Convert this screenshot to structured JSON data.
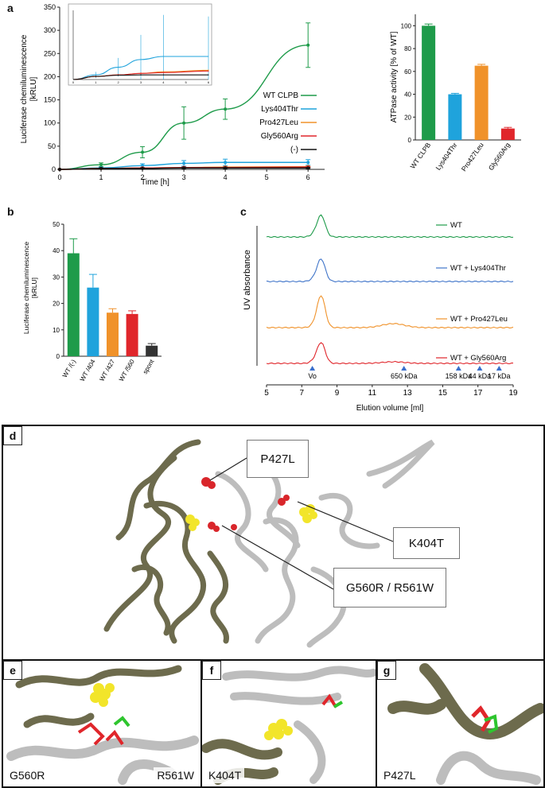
{
  "panel_labels": {
    "a": "a",
    "b": "b",
    "c": "c",
    "d": "d",
    "e": "e",
    "f": "f",
    "g": "g"
  },
  "colors": {
    "wt": "#1e9b4a",
    "lys404thr": "#1fa3dc",
    "pro427leu": "#f0922a",
    "gly560arg": "#e0262b",
    "neg": "#111111",
    "spont": "#333333",
    "mut_blue": "#3f74c9",
    "olive": "#6d6b4d",
    "marker": "#3a6fcc"
  },
  "chart_data": [
    {
      "id": "a-main",
      "type": "line",
      "title": "",
      "xlabel": "Time [h]",
      "ylabel_line1": "Luciferase chemiluminescence",
      "ylabel_line2": "[kRLU]",
      "xlim": [
        0,
        6.4
      ],
      "ylim": [
        0,
        350
      ],
      "xticks": [
        0,
        1,
        2,
        3,
        4,
        5,
        6
      ],
      "yticks": [
        0,
        50,
        100,
        150,
        200,
        250,
        300,
        350
      ],
      "x": [
        0,
        1,
        2,
        3,
        4,
        6
      ],
      "series": [
        {
          "name": "WT CLPB",
          "color": "#1e9b4a",
          "values": [
            0,
            10,
            37,
            100,
            130,
            268
          ],
          "err": [
            0,
            4,
            12,
            35,
            22,
            48
          ]
        },
        {
          "name": "Lys404Thr",
          "color": "#1fa3dc",
          "values": [
            0,
            3,
            8,
            13,
            15,
            15
          ],
          "err": [
            0,
            2,
            4,
            6,
            7,
            6
          ]
        },
        {
          "name": "Pro427Leu",
          "color": "#f0922a",
          "values": [
            0,
            2,
            3,
            4,
            5,
            6
          ],
          "err": [
            0,
            1,
            1,
            1,
            1,
            1
          ]
        },
        {
          "name": "Gly560Arg",
          "color": "#e0262b",
          "values": [
            0,
            2,
            3,
            4,
            4,
            5
          ],
          "err": [
            0,
            1,
            1,
            1,
            1,
            1
          ]
        },
        {
          "name": "(-)",
          "color": "#111111",
          "values": [
            0,
            2,
            2,
            3,
            3,
            3
          ],
          "err": [
            0,
            1,
            1,
            1,
            1,
            1
          ]
        }
      ],
      "legend": "right"
    },
    {
      "id": "a-inset",
      "type": "line",
      "xlim": [
        0,
        6
      ],
      "ylim": [
        0,
        45
      ],
      "xticks": [
        0,
        1,
        2,
        3,
        4,
        5,
        6
      ],
      "x": [
        0,
        1,
        2,
        3,
        4,
        6
      ],
      "series": [
        {
          "name": "Lys404Thr",
          "color": "#1fa3dc",
          "values": [
            0,
            3,
            8,
            13,
            15,
            15
          ],
          "err": [
            0,
            2,
            6,
            16,
            27,
            26
          ]
        },
        {
          "name": "Pro427Leu",
          "color": "#f0922a",
          "values": [
            0,
            2,
            3,
            4,
            5,
            6
          ],
          "err": [
            0,
            0.5,
            0.6,
            0.6,
            0.6,
            0.6
          ]
        },
        {
          "name": "Gly560Arg",
          "color": "#e0262b",
          "values": [
            0,
            2,
            3,
            4,
            4.5,
            5.5
          ],
          "err": [
            0,
            0.5,
            0.6,
            0.6,
            0.6,
            0.6
          ]
        },
        {
          "name": "(-)",
          "color": "#111111",
          "values": [
            0,
            2,
            2.8,
            3,
            3,
            3
          ],
          "err": [
            0,
            0.4,
            0.4,
            0.4,
            0.4,
            0.4
          ]
        }
      ]
    },
    {
      "id": "a-atpase",
      "type": "bar",
      "ylabel": "ATPase activity [% of WT]",
      "ylim": [
        0,
        110
      ],
      "yticks": [
        0,
        20,
        40,
        60,
        80,
        100
      ],
      "categories": [
        "WT CLPB",
        "Lys404Thr",
        "Pro427Leu",
        "Gly560Arg"
      ],
      "values": [
        100,
        40,
        65,
        10
      ],
      "err": [
        1.5,
        0.8,
        1.2,
        1.0
      ],
      "colors": [
        "#1e9b4a",
        "#1fa3dc",
        "#f0922a",
        "#e0262b"
      ]
    },
    {
      "id": "b-bars",
      "type": "bar",
      "ylabel_line1": "Luciferase chemiluminescence",
      "ylabel_line2": "[kRLU]",
      "ylim": [
        0,
        50
      ],
      "yticks": [
        0,
        10,
        20,
        30,
        40,
        50
      ],
      "categories": [
        "WT /(-)",
        "WT /404",
        "WT /427",
        "WT /560",
        "spont"
      ],
      "values": [
        39,
        26,
        16.5,
        16,
        4
      ],
      "err": [
        5.5,
        5,
        1.5,
        1.2,
        0.8
      ],
      "colors": [
        "#1e9b4a",
        "#1fa3dc",
        "#f0922a",
        "#e0262b",
        "#333333"
      ]
    },
    {
      "id": "c-sec",
      "type": "line",
      "xlabel": "Elution volume [ml]",
      "ylabel": "UV absorbance",
      "xlim": [
        5,
        19
      ],
      "xticks": [
        5,
        7,
        9,
        11,
        13,
        15,
        17,
        19
      ],
      "series": [
        {
          "name": "WT",
          "color": "#1e9b4a"
        },
        {
          "name": "WT + Lys404Thr",
          "color": "#3f74c9"
        },
        {
          "name": "WT + Pro427Leu",
          "color": "#f0922a"
        },
        {
          "name": "WT + Gly560Arg",
          "color": "#e0262b"
        }
      ],
      "markers": [
        {
          "label": "Vo",
          "x": 7.6
        },
        {
          "label": "650 kDa",
          "x": 12.8
        },
        {
          "label": "158 kDa",
          "x": 15.9
        },
        {
          "label": "44 kDa",
          "x": 17.1
        },
        {
          "label": "17 kDa",
          "x": 18.2
        }
      ]
    }
  ],
  "structure": {
    "callouts": {
      "p427l": "P427L",
      "k404t": "K404T",
      "g560r": "G560R / R561W"
    },
    "e_left": "G560R",
    "e_right": "R561W",
    "f_label": "K404T",
    "g_label": "P427L"
  }
}
